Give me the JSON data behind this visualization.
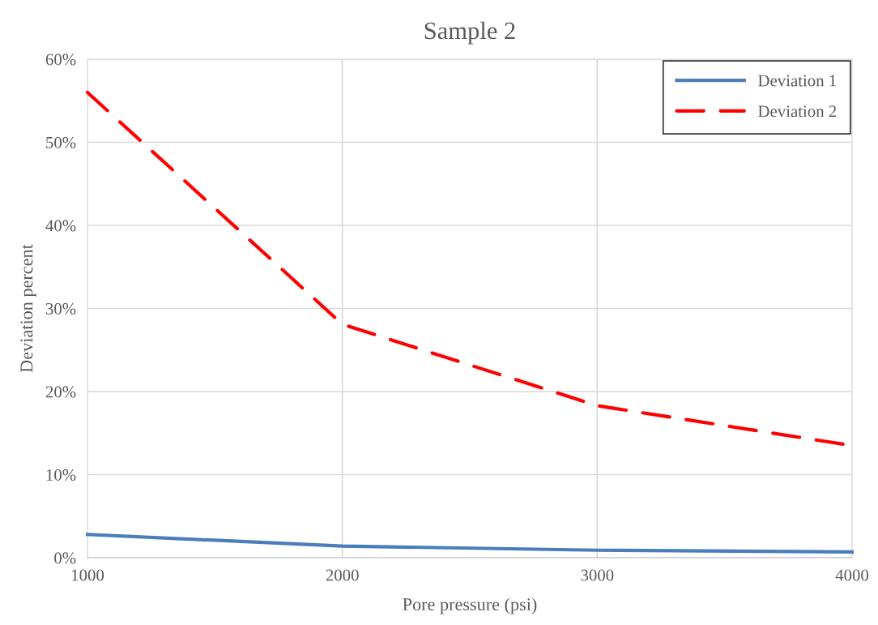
{
  "chart_data": {
    "type": "line",
    "title": "Sample 2",
    "xlabel": "Pore pressure (psi)",
    "ylabel": "Deviation percent",
    "x": [
      1000,
      2000,
      3000,
      4000
    ],
    "series": [
      {
        "name": "Deviation 1",
        "color": "#4a7ebb",
        "values": [
          2.8,
          1.4,
          0.9,
          0.7
        ],
        "line_style": "solid"
      },
      {
        "name": "Deviation 2",
        "color": "#ff0000",
        "values": [
          56,
          28.1,
          18.3,
          13.5
        ],
        "line_style": "dashed"
      }
    ],
    "xlim": [
      1000,
      4000
    ],
    "xticks": [
      1000,
      2000,
      3000,
      4000
    ],
    "ylim": [
      0,
      60
    ],
    "yticks": [
      {
        "value": 0,
        "label": "0%"
      },
      {
        "value": 10,
        "label": "10%"
      },
      {
        "value": 20,
        "label": "20%"
      },
      {
        "value": 30,
        "label": "30%"
      },
      {
        "value": 40,
        "label": "40%"
      },
      {
        "value": 50,
        "label": "50%"
      },
      {
        "value": 60,
        "label": "60%"
      }
    ],
    "grid": true,
    "legend": "top right",
    "marker": "none"
  }
}
